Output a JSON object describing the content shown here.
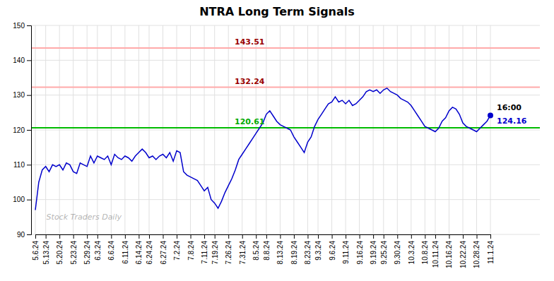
{
  "chart_data": {
    "type": "line",
    "title": "NTRA Long Term Signals",
    "categories": [
      "5.6.24",
      null,
      null,
      "5.13.24",
      null,
      null,
      null,
      "5.20.24",
      null,
      null,
      null,
      "5.23.24",
      null,
      null,
      null,
      "5.29.24",
      null,
      null,
      "6.3.24",
      null,
      null,
      null,
      "6.6.24",
      null,
      null,
      null,
      "6.11.24",
      null,
      null,
      null,
      "6.14.24",
      null,
      null,
      "6.24.24",
      null,
      null,
      null,
      "6.27.24",
      null,
      null,
      null,
      "7.2.24",
      null,
      null,
      null,
      "7.8.24",
      null,
      null,
      null,
      "7.11.24",
      null,
      null,
      "7.19.24",
      null,
      null,
      null,
      "7.26.24",
      null,
      null,
      null,
      "7.31.24",
      null,
      null,
      null,
      "8.5.24",
      null,
      null,
      "8.8.24",
      null,
      null,
      null,
      "8.13.24",
      null,
      null,
      null,
      "8.19.24",
      null,
      null,
      null,
      "8.23.24",
      null,
      null,
      "9.3.24",
      null,
      null,
      null,
      "9.6.24",
      null,
      null,
      null,
      "9.11.24",
      null,
      null,
      null,
      "9.16.24",
      null,
      null,
      null,
      "9.19.24",
      null,
      null,
      "9.25.24",
      null,
      null,
      null,
      "9.30.24",
      null,
      null,
      null,
      "10.3.24",
      null,
      null,
      null,
      "10.8.24",
      null,
      null,
      "10.11.24",
      null,
      null,
      null,
      "10.16.24",
      null,
      null,
      null,
      "10.22.24",
      null,
      null,
      null,
      "10.28.24",
      null,
      null,
      null,
      "11.1.24"
    ],
    "values": [
      97.0,
      105.0,
      108.5,
      109.5,
      108.0,
      110.0,
      109.5,
      110.0,
      108.5,
      110.5,
      110.0,
      108.0,
      107.5,
      110.5,
      110.0,
      109.5,
      112.5,
      110.5,
      112.5,
      112.0,
      111.5,
      112.5,
      110.0,
      113.0,
      112.0,
      111.5,
      112.5,
      112.0,
      111.0,
      112.5,
      113.5,
      114.5,
      113.5,
      112.0,
      112.5,
      111.5,
      112.5,
      113.0,
      112.0,
      113.5,
      111.0,
      114.0,
      113.5,
      108.0,
      107.0,
      106.5,
      106.0,
      105.5,
      104.0,
      102.5,
      103.5,
      100.0,
      99.0,
      97.5,
      99.5,
      102.0,
      104.0,
      106.0,
      108.5,
      111.5,
      113.0,
      114.5,
      116.0,
      117.5,
      119.0,
      120.5,
      122.0,
      124.5,
      125.5,
      124.0,
      122.5,
      121.5,
      121.0,
      120.5,
      120.0,
      118.0,
      116.5,
      115.0,
      113.5,
      116.5,
      118.0,
      121.0,
      123.0,
      124.5,
      126.0,
      127.5,
      128.0,
      129.5,
      128.0,
      128.5,
      127.5,
      128.5,
      127.0,
      127.5,
      128.5,
      129.5,
      131.0,
      131.5,
      131.0,
      131.5,
      130.5,
      131.5,
      132.0,
      131.0,
      130.5,
      130.0,
      129.0,
      128.5,
      128.0,
      127.0,
      125.5,
      124.0,
      122.5,
      121.0,
      120.5,
      120.0,
      119.5,
      120.5,
      122.5,
      123.5,
      125.5,
      126.5,
      126.0,
      124.5,
      122.0,
      121.0,
      120.5,
      120.0,
      119.5,
      120.5,
      121.5,
      122.5,
      124.16
    ],
    "color": "#0000cc",
    "ylim": [
      90,
      150
    ],
    "yticks": [
      90,
      100,
      110,
      120,
      130,
      140,
      150
    ],
    "grid": true,
    "hlines": [
      {
        "value": 143.51,
        "label": "143.51",
        "color": "#ffaaaa",
        "label_color": "#990000"
      },
      {
        "value": 132.24,
        "label": "132.24",
        "color": "#ffaaaa",
        "label_color": "#990000"
      },
      {
        "value": 120.61,
        "label": "120.61",
        "color": "#00bb00",
        "label_color": "#00aa00"
      }
    ],
    "annotations": [
      {
        "text": "16:00"
      },
      {
        "text": "124.16",
        "value": 124.16,
        "color": "#0000cc"
      }
    ],
    "watermark": "Stock Traders Daily"
  }
}
